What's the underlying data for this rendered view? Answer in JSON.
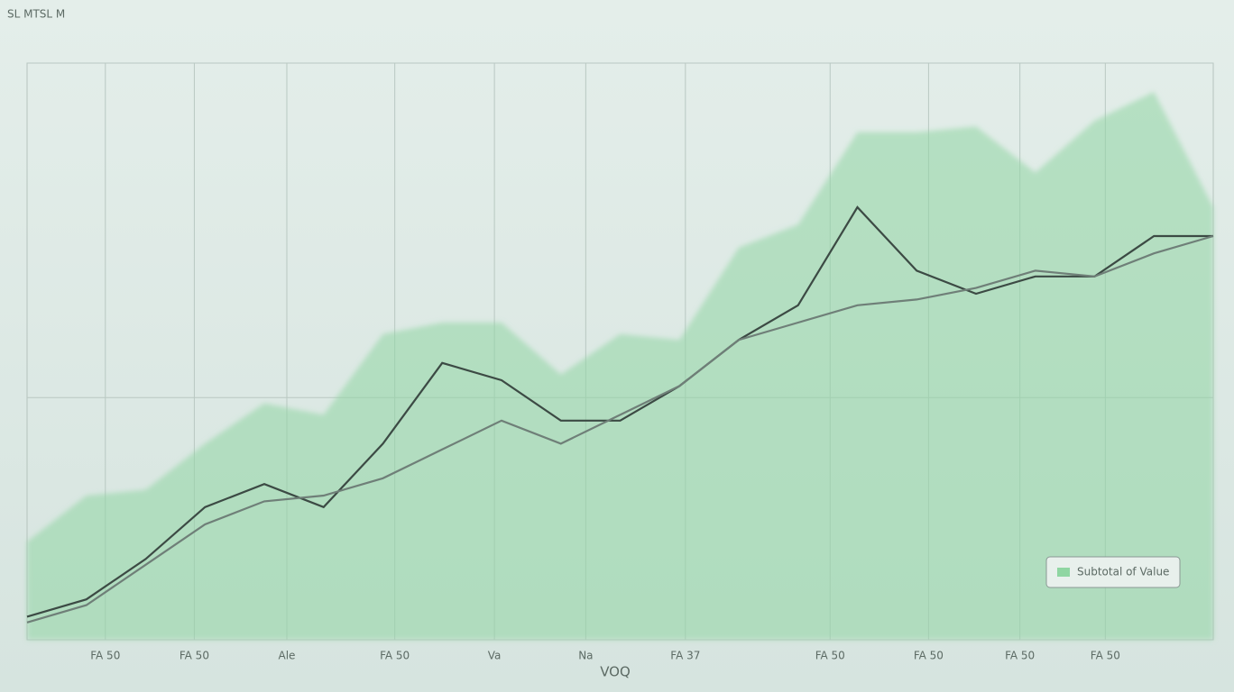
{
  "chart_data": {
    "type": "line",
    "title": "SL MTSL M",
    "x_label": "VOQ",
    "x": [
      0,
      5,
      10,
      15,
      20,
      25,
      30,
      35,
      40,
      45,
      50,
      55,
      60,
      65,
      70,
      75,
      80,
      85,
      90,
      95,
      100
    ],
    "xlim": [
      0,
      100
    ],
    "xticks": [
      {
        "value": 6.6,
        "label": "FA 50"
      },
      {
        "value": 14.1,
        "label": "FA 50"
      },
      {
        "value": 21.9,
        "label": "Ale"
      },
      {
        "value": 31,
        "label": "FA 50"
      },
      {
        "value": 39.4,
        "label": "Va"
      },
      {
        "value": 47.1,
        "label": "Na"
      },
      {
        "value": 55.5,
        "label": "FA 37"
      },
      {
        "value": 67.7,
        "label": "FA 50"
      },
      {
        "value": 76,
        "label": "FA 50"
      },
      {
        "value": 83.7,
        "label": "FA 50"
      },
      {
        "value": 90.9,
        "label": "FA 50"
      }
    ],
    "ylim": [
      0,
      100
    ],
    "yticks": [
      0,
      42,
      100
    ],
    "grid": true,
    "legend": "bottom-right",
    "series": [
      {
        "name": "Subtotal of Value",
        "kind": "area",
        "color": "#8fd6a2",
        "values": [
          17,
          25,
          26,
          34,
          41,
          39,
          53,
          55,
          55,
          46,
          53,
          52,
          68,
          72,
          88,
          88,
          89,
          81,
          90,
          95,
          75
        ]
      },
      {
        "kind": "line",
        "color": "#3c4a44",
        "values": [
          4,
          7,
          14,
          23,
          27,
          23,
          34,
          48,
          45,
          38,
          38,
          44,
          52,
          58,
          75,
          64,
          60,
          63,
          63,
          70,
          70
        ]
      },
      {
        "kind": "line",
        "color": "#6f7f78",
        "values": [
          3,
          6,
          13,
          20,
          24,
          25,
          28,
          33,
          38,
          34,
          39,
          44,
          52,
          55,
          58,
          59,
          61,
          64,
          63,
          67,
          70
        ]
      }
    ]
  }
}
